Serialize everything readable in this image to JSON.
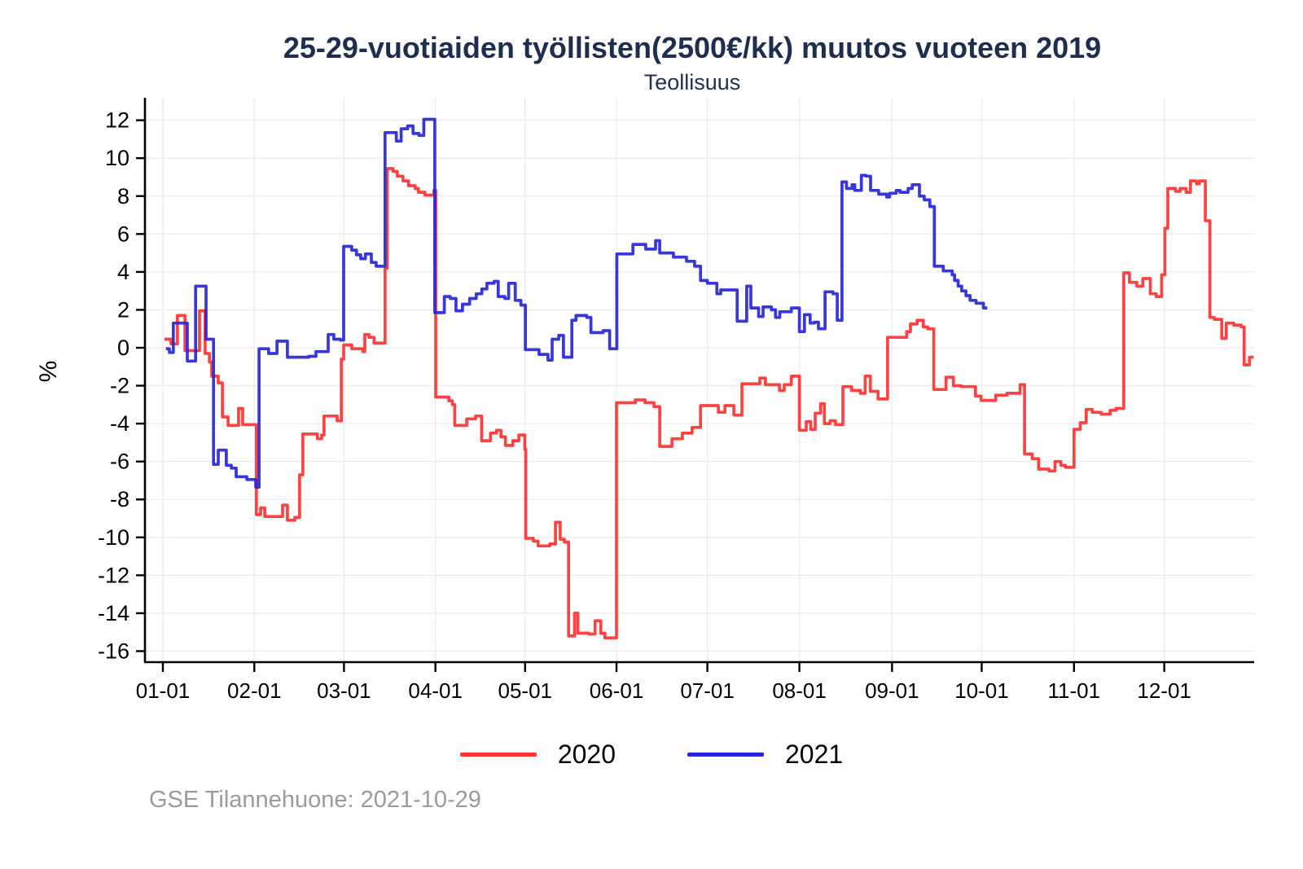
{
  "chart": {
    "title": "25-29-vuotiaiden työllisten(2500€/kk) muutos vuoteen 2019",
    "subtitle": "Teollisuus",
    "ylabel": "%",
    "caption": "GSE Tilannehuone: 2021-10-29"
  },
  "legend": {
    "items": [
      {
        "label": "2020",
        "color": "#ff3333"
      },
      {
        "label": "2021",
        "color": "#2626d9"
      }
    ]
  },
  "chart_data": {
    "type": "line",
    "step": true,
    "title": "25-29-vuotiaiden työllisten(2500€/kk) muutos vuoteen 2019",
    "subtitle": "Teollisuus",
    "xlabel": "",
    "ylabel": "%",
    "ylim": [
      -16,
      12
    ],
    "ytick_interval": 2,
    "yticks": [
      12,
      10,
      8,
      6,
      4,
      2,
      0,
      -2,
      -4,
      -6,
      -8,
      -10,
      -12,
      -14,
      -16
    ],
    "grid": true,
    "legend_position": "bottom",
    "x_axis": {
      "unit": "day-of-year",
      "ticks": [
        {
          "label": "01-01",
          "day": 0
        },
        {
          "label": "02-01",
          "day": 30.7
        },
        {
          "label": "03-01",
          "day": 60.8
        },
        {
          "label": "04-01",
          "day": 91.5
        },
        {
          "label": "05-01",
          "day": 121.6
        },
        {
          "label": "06-01",
          "day": 152.3
        },
        {
          "label": "07-01",
          "day": 182.8
        },
        {
          "label": "08-01",
          "day": 213.7
        },
        {
          "label": "09-01",
          "day": 244.8
        },
        {
          "label": "10-01",
          "day": 274.9
        },
        {
          "label": "11-01",
          "day": 305.9
        },
        {
          "label": "12-01",
          "day": 336.2
        }
      ]
    },
    "colors": {
      "grid": "#ececec",
      "axis": "#000000",
      "caption": "#9b9b9b",
      "title": "#1e2e4f"
    },
    "series": [
      {
        "name": "2020",
        "color": "#ff3333",
        "end_day": 366.2,
        "points": [
          [
            0.5,
            0.45
          ],
          [
            2.7,
            0.2
          ],
          [
            4.9,
            1.7
          ],
          [
            7.4,
            -0.15
          ],
          [
            12.3,
            1.95
          ],
          [
            14.2,
            -0.3
          ],
          [
            15.6,
            -0.75
          ],
          [
            16.4,
            -1.5
          ],
          [
            18.6,
            -1.85
          ],
          [
            20,
            -3.65
          ],
          [
            21.9,
            -4.1
          ],
          [
            25.4,
            -3.2
          ],
          [
            26.8,
            -4.05
          ],
          [
            31.4,
            -8.8
          ],
          [
            32.8,
            -8.45
          ],
          [
            34.2,
            -8.9
          ],
          [
            40.2,
            -8.3
          ],
          [
            41.8,
            -9.1
          ],
          [
            44.3,
            -8.95
          ],
          [
            45.9,
            -6.7
          ],
          [
            47,
            -4.55
          ],
          [
            51.9,
            -4.8
          ],
          [
            53.3,
            -4.6
          ],
          [
            54.1,
            -3.6
          ],
          [
            58.5,
            -3.85
          ],
          [
            59.9,
            -0.6
          ],
          [
            60.7,
            0.15
          ],
          [
            63.4,
            -0.05
          ],
          [
            67.1,
            -0.2
          ],
          [
            67.8,
            0.7
          ],
          [
            69.2,
            0.55
          ],
          [
            70.9,
            0.25
          ],
          [
            74.6,
            4.2
          ],
          [
            75.3,
            9.45
          ],
          [
            77.3,
            9.3
          ],
          [
            78.7,
            9.05
          ],
          [
            80.6,
            8.8
          ],
          [
            82.5,
            8.55
          ],
          [
            84.7,
            8.4
          ],
          [
            85.8,
            8.2
          ],
          [
            88,
            8.05
          ],
          [
            91,
            8.3
          ],
          [
            91.6,
            -2.6
          ],
          [
            96,
            -2.8
          ],
          [
            97.2,
            -3.0
          ],
          [
            98,
            -4.1
          ],
          [
            102,
            -3.75
          ],
          [
            105,
            -3.6
          ],
          [
            107,
            -4.9
          ],
          [
            110,
            -4.5
          ],
          [
            112,
            -4.35
          ],
          [
            113.5,
            -4.7
          ],
          [
            115,
            -5.15
          ],
          [
            117.5,
            -4.9
          ],
          [
            119.5,
            -4.6
          ],
          [
            121.5,
            -5.35
          ],
          [
            121.8,
            -10.05
          ],
          [
            124.4,
            -10.2
          ],
          [
            126,
            -10.45
          ],
          [
            129.9,
            -10.35
          ],
          [
            131.8,
            -9.2
          ],
          [
            133.4,
            -10.1
          ],
          [
            134.8,
            -10.25
          ],
          [
            136.2,
            -15.2
          ],
          [
            138.2,
            -14.0
          ],
          [
            139.3,
            -15.05
          ],
          [
            143,
            -15.1
          ],
          [
            145.1,
            -14.4
          ],
          [
            147,
            -15.05
          ],
          [
            148.4,
            -15.3
          ],
          [
            152.3,
            -2.9
          ],
          [
            158.6,
            -2.75
          ],
          [
            161.9,
            -2.9
          ],
          [
            164.9,
            -3.1
          ],
          [
            166.8,
            -5.2
          ],
          [
            170.9,
            -4.8
          ],
          [
            174.4,
            -4.5
          ],
          [
            177.7,
            -4.2
          ],
          [
            180.5,
            -3.05
          ],
          [
            186.5,
            -3.4
          ],
          [
            188.7,
            -3.05
          ],
          [
            191.7,
            -3.55
          ],
          [
            194.4,
            -1.9
          ],
          [
            200.4,
            -1.6
          ],
          [
            202.3,
            -1.95
          ],
          [
            207,
            -2.25
          ],
          [
            208.6,
            -1.95
          ],
          [
            211,
            -1.5
          ],
          [
            213.7,
            -4.35
          ],
          [
            216,
            -3.9
          ],
          [
            217.5,
            -4.3
          ],
          [
            219,
            -3.45
          ],
          [
            220.8,
            -2.95
          ],
          [
            222.1,
            -4.0
          ],
          [
            224,
            -3.85
          ],
          [
            225.8,
            -4.05
          ],
          [
            228.3,
            -2.05
          ],
          [
            231.2,
            -2.25
          ],
          [
            234.2,
            -2.4
          ],
          [
            235.8,
            -1.5
          ],
          [
            237.5,
            -2.3
          ],
          [
            240.1,
            -2.7
          ],
          [
            243.3,
            0.55
          ],
          [
            249.7,
            0.85
          ],
          [
            251,
            1.25
          ],
          [
            253.2,
            1.45
          ],
          [
            255.3,
            1.1
          ],
          [
            256.8,
            1.0
          ],
          [
            258.8,
            -2.2
          ],
          [
            262.9,
            -1.55
          ],
          [
            265.4,
            -2.0
          ],
          [
            268,
            -2.05
          ],
          [
            272.8,
            -2.55
          ],
          [
            274.7,
            -2.78
          ],
          [
            279.6,
            -2.5
          ],
          [
            283.4,
            -2.4
          ],
          [
            287.8,
            -1.95
          ],
          [
            289.3,
            -5.6
          ],
          [
            291.9,
            -5.85
          ],
          [
            294,
            -6.4
          ],
          [
            297.5,
            -6.5
          ],
          [
            299.5,
            -6.0
          ],
          [
            301.5,
            -6.2
          ],
          [
            303,
            -6.3
          ],
          [
            305.9,
            -4.3
          ],
          [
            308,
            -3.95
          ],
          [
            310,
            -3.25
          ],
          [
            312,
            -3.4
          ],
          [
            315,
            -3.5
          ],
          [
            318,
            -3.3
          ],
          [
            320,
            -3.2
          ],
          [
            322.6,
            3.95
          ],
          [
            324.5,
            3.45
          ],
          [
            327,
            3.25
          ],
          [
            329,
            3.65
          ],
          [
            331.5,
            2.85
          ],
          [
            333.5,
            2.7
          ],
          [
            335.3,
            3.85
          ],
          [
            336.4,
            6.3
          ],
          [
            337.4,
            8.4
          ],
          [
            340,
            8.25
          ],
          [
            341.5,
            8.4
          ],
          [
            343.5,
            8.2
          ],
          [
            345,
            8.8
          ],
          [
            347,
            8.65
          ],
          [
            348,
            8.8
          ],
          [
            350,
            6.7
          ],
          [
            351.5,
            1.6
          ],
          [
            353,
            1.5
          ],
          [
            355.5,
            0.5
          ],
          [
            357,
            1.3
          ],
          [
            359.5,
            1.2
          ],
          [
            362,
            1.1
          ],
          [
            363,
            -0.9
          ],
          [
            364.8,
            -0.5
          ]
        ]
      },
      {
        "name": "2021",
        "color": "#2626d9",
        "end_day": 276.8,
        "points": [
          [
            1,
            -0.05
          ],
          [
            2.2,
            -0.25
          ],
          [
            3.5,
            1.3
          ],
          [
            8.2,
            -0.7
          ],
          [
            11,
            3.25
          ],
          [
            14.5,
            0.45
          ],
          [
            17,
            -6.15
          ],
          [
            18.6,
            -5.4
          ],
          [
            21.3,
            -6.2
          ],
          [
            23,
            -6.35
          ],
          [
            24.6,
            -6.8
          ],
          [
            28.2,
            -6.95
          ],
          [
            31.2,
            -7.35
          ],
          [
            32.3,
            -0.05
          ],
          [
            35.5,
            -0.3
          ],
          [
            38.3,
            0.35
          ],
          [
            41.8,
            -0.5
          ],
          [
            49,
            -0.45
          ],
          [
            51.4,
            -0.2
          ],
          [
            55.5,
            0.7
          ],
          [
            57.4,
            0.45
          ],
          [
            59.6,
            0.4
          ],
          [
            60.7,
            5.35
          ],
          [
            63.4,
            5.15
          ],
          [
            65,
            4.9
          ],
          [
            66.4,
            4.7
          ],
          [
            68,
            4.95
          ],
          [
            70,
            4.5
          ],
          [
            71.6,
            4.3
          ],
          [
            74.6,
            11.35
          ],
          [
            78.4,
            10.9
          ],
          [
            80,
            11.55
          ],
          [
            82.2,
            11.7
          ],
          [
            84,
            11.3
          ],
          [
            86,
            11.2
          ],
          [
            87.6,
            12.05
          ],
          [
            91.3,
            1.85
          ],
          [
            94.5,
            2.7
          ],
          [
            96.5,
            2.6
          ],
          [
            98.4,
            1.95
          ],
          [
            100.6,
            2.3
          ],
          [
            103,
            2.6
          ],
          [
            105.2,
            2.85
          ],
          [
            107.1,
            3.1
          ],
          [
            108.8,
            3.4
          ],
          [
            111.2,
            3.5
          ],
          [
            112.6,
            2.7
          ],
          [
            114.8,
            2.6
          ],
          [
            116.1,
            3.4
          ],
          [
            118.3,
            2.5
          ],
          [
            120.2,
            2.25
          ],
          [
            121.7,
            -0.1
          ],
          [
            126.3,
            -0.35
          ],
          [
            129.3,
            -0.65
          ],
          [
            130.7,
            0.45
          ],
          [
            132.9,
            0.65
          ],
          [
            134.5,
            -0.5
          ],
          [
            137.3,
            1.45
          ],
          [
            138.7,
            1.7
          ],
          [
            142.3,
            1.6
          ],
          [
            143.7,
            0.8
          ],
          [
            147.8,
            0.9
          ],
          [
            150,
            -0.05
          ],
          [
            152.4,
            4.95
          ],
          [
            157.8,
            5.45
          ],
          [
            162.1,
            5.2
          ],
          [
            165.4,
            5.65
          ],
          [
            166.8,
            5.0
          ],
          [
            171.4,
            4.78
          ],
          [
            175.8,
            4.56
          ],
          [
            178.5,
            4.3
          ],
          [
            180.5,
            3.55
          ],
          [
            182.8,
            3.4
          ],
          [
            186,
            2.85
          ],
          [
            187.3,
            3.05
          ],
          [
            192.8,
            1.4
          ],
          [
            196,
            3.25
          ],
          [
            197.4,
            2.1
          ],
          [
            200,
            1.65
          ],
          [
            201.5,
            2.15
          ],
          [
            204.3,
            2.0
          ],
          [
            205.7,
            1.6
          ],
          [
            207.1,
            1.9
          ],
          [
            211,
            2.1
          ],
          [
            213.7,
            0.85
          ],
          [
            215.4,
            1.75
          ],
          [
            217.3,
            1.3
          ],
          [
            218.7,
            1.35
          ],
          [
            220.1,
            1.0
          ],
          [
            222.3,
            2.95
          ],
          [
            225,
            2.85
          ],
          [
            226.4,
            1.45
          ],
          [
            228,
            8.75
          ],
          [
            229.5,
            8.4
          ],
          [
            231.4,
            8.6
          ],
          [
            232.3,
            8.3
          ],
          [
            234.5,
            9.1
          ],
          [
            236,
            9.05
          ],
          [
            237.6,
            8.3
          ],
          [
            240.3,
            8.1
          ],
          [
            243,
            7.95
          ],
          [
            244,
            8.15
          ],
          [
            246.2,
            8.3
          ],
          [
            247.5,
            8.2
          ],
          [
            250.2,
            8.4
          ],
          [
            251.6,
            8.6
          ],
          [
            254,
            8.0
          ],
          [
            255.6,
            7.8
          ],
          [
            257.5,
            7.45
          ],
          [
            259,
            4.3
          ],
          [
            262,
            4.05
          ],
          [
            265,
            3.85
          ],
          [
            265.8,
            3.55
          ],
          [
            267,
            3.25
          ],
          [
            268.2,
            3.0
          ],
          [
            269.6,
            2.75
          ],
          [
            271,
            2.5
          ],
          [
            273,
            2.35
          ],
          [
            275.5,
            2.1
          ]
        ]
      }
    ]
  }
}
